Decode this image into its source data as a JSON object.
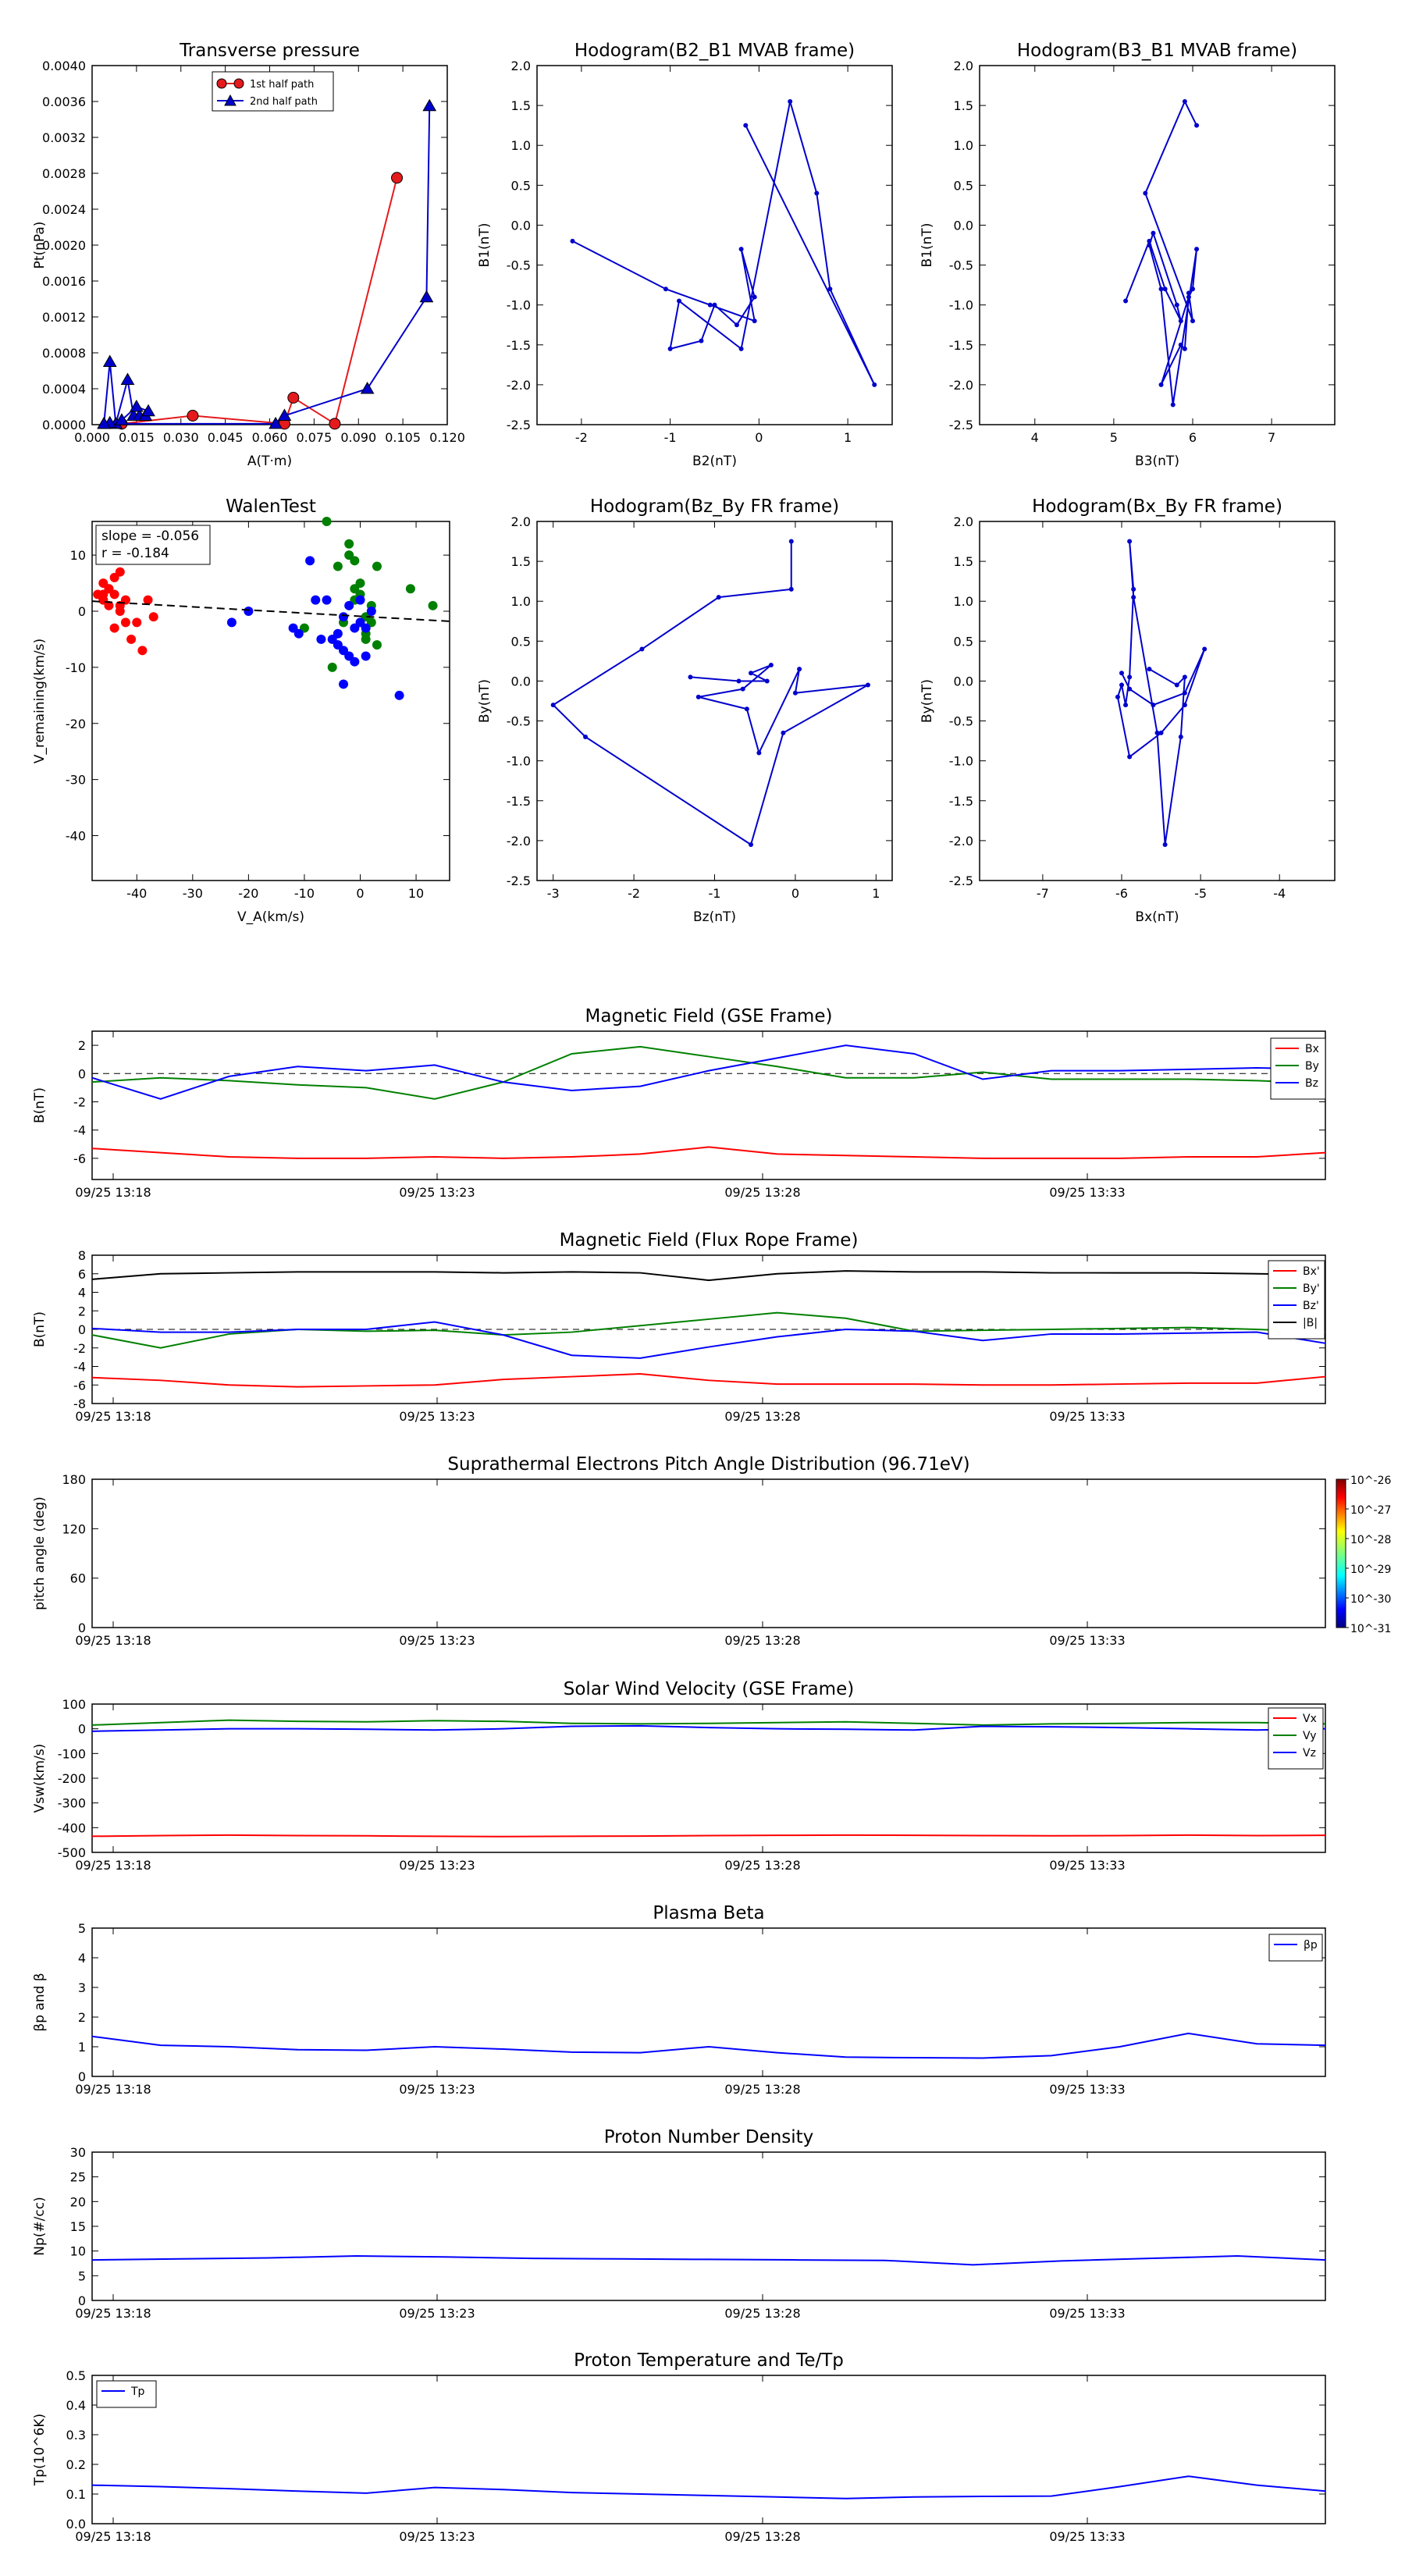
{
  "chart_data": [
    {
      "type": "line",
      "title": "Transverse pressure",
      "xlabel": "A(T·m)",
      "ylabel": "Pt(nPa)",
      "xlim": [
        0.0,
        0.12
      ],
      "ylim": [
        0.0,
        0.004
      ],
      "xticks": [
        "0.000",
        "0.015",
        "0.030",
        "0.045",
        "0.060",
        "0.075",
        "0.090",
        "0.105",
        "0.120"
      ],
      "yticks": [
        "0.0000",
        "0.0004",
        "0.0008",
        "0.0012",
        "0.0016",
        "0.0020",
        "0.0024",
        "0.0028",
        "0.0032",
        "0.0036",
        "0.0040"
      ],
      "legend": "upper-center",
      "series": [
        {
          "name": "1st half path",
          "color": "#e41a1c",
          "marker": "circle",
          "x": [
            0.103,
            0.082,
            0.068,
            0.065,
            0.034,
            0.01
          ],
          "y": [
            0.00275,
            1e-05,
            0.0003,
            1e-05,
            0.0001,
            1e-05
          ]
        },
        {
          "name": "2nd half path",
          "color": "#0000cc",
          "marker": "triangle",
          "x": [
            0.004,
            0.006,
            0.008,
            0.012,
            0.014,
            0.016,
            0.018,
            0.019,
            0.015,
            0.01,
            0.006,
            0.004,
            0.062,
            0.065,
            0.093,
            0.113,
            0.114
          ],
          "y": [
            1e-05,
            0.0007,
            1e-05,
            0.0005,
            0.0001,
            0.0001,
            0.0001,
            0.00015,
            0.0002,
            5e-05,
            2e-05,
            1e-05,
            1e-05,
            0.0001,
            0.0004,
            0.00142,
            0.00355
          ]
        }
      ]
    },
    {
      "type": "line",
      "title": "Hodogram(B2_B1 MVAB frame)",
      "xlabel": "B2(nT)",
      "ylabel": "B1(nT)",
      "xlim": [
        -2.5,
        1.5
      ],
      "ylim": [
        -2.5,
        2.0
      ],
      "xticks": [
        "-2",
        "-1",
        "0",
        "1"
      ],
      "yticks": [
        "-2.5",
        "-2.0",
        "-1.5",
        "-1.0",
        "-0.5",
        "0.0",
        "0.5",
        "1.0",
        "1.5",
        "2.0"
      ],
      "series": [
        {
          "name": "",
          "color": "#0000cc",
          "x": [
            -2.1,
            -1.05,
            -0.55,
            -0.05,
            -0.2,
            -0.05,
            -0.25,
            -0.5,
            -0.65,
            -1.0,
            -0.9,
            -0.2,
            0.35,
            0.65,
            0.8,
            1.3,
            -0.15
          ],
          "y": [
            -0.2,
            -0.8,
            -1.0,
            -1.2,
            -0.3,
            -0.9,
            -1.25,
            -1.0,
            -1.45,
            -1.55,
            -0.95,
            -1.55,
            1.55,
            0.4,
            -0.8,
            -2.0,
            1.25
          ]
        }
      ]
    },
    {
      "type": "line",
      "title": "Hodogram(B3_B1 MVAB frame)",
      "xlabel": "B3(nT)",
      "ylabel": "B1(nT)",
      "xlim": [
        3.3,
        7.8
      ],
      "ylim": [
        -2.5,
        2.0
      ],
      "xticks": [
        "4",
        "5",
        "6",
        "7"
      ],
      "yticks": [
        "-2.5",
        "-2.0",
        "-1.5",
        "-1.0",
        "-0.5",
        "0.0",
        "0.5",
        "1.0",
        "1.5",
        "2.0"
      ],
      "series": [
        {
          "name": "",
          "color": "#0000cc",
          "x": [
            5.15,
            5.45,
            5.65,
            5.85,
            5.8,
            5.5,
            5.45,
            5.6,
            5.75,
            6.05,
            6.0,
            5.95,
            5.6,
            5.85,
            5.9,
            5.95,
            6.0,
            5.4,
            5.9,
            6.05
          ],
          "y": [
            -0.95,
            -0.2,
            -0.8,
            -1.2,
            -1.0,
            -0.1,
            -0.25,
            -0.8,
            -2.25,
            -0.3,
            -0.8,
            -0.9,
            -2.0,
            -1.5,
            -1.55,
            -0.85,
            -1.2,
            0.4,
            1.55,
            1.25
          ]
        }
      ]
    },
    {
      "type": "scatter",
      "title": "WalenTest",
      "xlabel": "V_A(km/s)",
      "ylabel": "V_remaining(km/s)",
      "xlim": [
        -48,
        16
      ],
      "ylim": [
        -48,
        16
      ],
      "xticks": [
        "-40",
        "-30",
        "-20",
        "-10",
        "0",
        "10"
      ],
      "yticks": [
        "-40",
        "-30",
        "-20",
        "-10",
        "0",
        "10"
      ],
      "annotation_lines": [
        "slope = -0.056",
        "r = -0.184"
      ],
      "fit": {
        "slope": -0.056,
        "intercept": -0.9
      },
      "series": [
        {
          "name": "",
          "color": "#ff0000",
          "x": [
            -47,
            -46,
            -46,
            -45,
            -45,
            -44,
            -44,
            -43,
            -43,
            -42,
            -42,
            -41,
            -40,
            -39,
            -38,
            -37,
            -46,
            -45,
            -44,
            -43
          ],
          "y": [
            3,
            2,
            5,
            4,
            1,
            6,
            3,
            7,
            0,
            -2,
            2,
            -5,
            -2,
            -7,
            2,
            -1,
            3,
            4,
            -3,
            1
          ]
        },
        {
          "name": "",
          "color": "#008000",
          "x": [
            -6,
            -4,
            -3,
            -2,
            -1,
            0,
            0,
            1,
            1,
            2,
            -1,
            3,
            9,
            13,
            -10,
            -2,
            2,
            -5,
            1,
            -1,
            3
          ],
          "y": [
            16,
            8,
            -2,
            12,
            4,
            5,
            3,
            -1,
            -4,
            1,
            9,
            8,
            4,
            1,
            -3,
            10,
            -2,
            -10,
            -5,
            2,
            -6
          ]
        },
        {
          "name": "",
          "color": "#0000ff",
          "x": [
            -20,
            -23,
            -12,
            -11,
            -9,
            -8,
            -6,
            -4,
            -3,
            -3,
            -2,
            -2,
            -1,
            0,
            0,
            1,
            1,
            2,
            -5,
            -4,
            7,
            -1,
            -7,
            -3
          ],
          "y": [
            0,
            -2,
            -3,
            -4,
            9,
            2,
            2,
            -4,
            -7,
            -13,
            -8,
            1,
            -3,
            -2,
            2,
            -3,
            -8,
            0,
            -5,
            -6,
            -15,
            -9,
            -5,
            -1
          ]
        }
      ]
    },
    {
      "type": "line",
      "title": "Hodogram(Bz_By FR frame)",
      "xlabel": "Bz(nT)",
      "ylabel": "By(nT)",
      "xlim": [
        -3.2,
        1.2
      ],
      "ylim": [
        -2.5,
        2.0
      ],
      "xticks": [
        "-3",
        "-2",
        "-1",
        "0",
        "1"
      ],
      "yticks": [
        "-2.5",
        "-2.0",
        "-1.5",
        "-1.0",
        "-0.5",
        "0.0",
        "0.5",
        "1.0",
        "1.5",
        "2.0"
      ],
      "series": [
        {
          "name": "",
          "color": "#0000cc",
          "x": [
            -1.3,
            -0.7,
            -0.35,
            -0.55,
            -0.3,
            -0.65,
            -1.2,
            -0.6,
            -0.45,
            0.05,
            0.0,
            0.9,
            -0.15,
            -0.55,
            -2.6,
            -3.0,
            -1.9,
            -0.95,
            -0.05,
            -0.05
          ],
          "y": [
            0.05,
            0.0,
            0.0,
            0.1,
            0.2,
            -0.1,
            -0.2,
            -0.35,
            -0.9,
            0.15,
            -0.15,
            -0.05,
            -0.65,
            -2.05,
            -0.7,
            -0.3,
            0.4,
            1.05,
            1.15,
            1.75
          ]
        }
      ]
    },
    {
      "type": "line",
      "title": "Hodogram(Bx_By FR frame)",
      "xlabel": "Bx(nT)",
      "ylabel": "By(nT)",
      "xlim": [
        -7.8,
        -3.3
      ],
      "ylim": [
        -2.5,
        2.0
      ],
      "xticks": [
        "-7",
        "-6",
        "-5",
        "-4"
      ],
      "yticks": [
        "-2.5",
        "-2.0",
        "-1.5",
        "-1.0",
        "-0.5",
        "0.0",
        "0.5",
        "1.0",
        "1.5",
        "2.0"
      ],
      "series": [
        {
          "name": "",
          "color": "#0000cc",
          "x": [
            -6.0,
            -5.9,
            -5.6,
            -5.2,
            -4.95,
            -5.2,
            -5.5,
            -5.9,
            -6.05,
            -6.0,
            -5.95,
            -5.9,
            -5.85,
            -5.9,
            -5.85,
            -5.55,
            -5.45,
            -5.25,
            -5.2,
            -5.3,
            -5.65
          ],
          "y": [
            0.1,
            -0.1,
            -0.3,
            -0.15,
            0.4,
            -0.3,
            -0.65,
            -0.95,
            -0.2,
            -0.05,
            -0.3,
            0.05,
            1.15,
            1.75,
            1.05,
            -0.65,
            -2.05,
            -0.7,
            0.05,
            -0.05,
            0.15
          ]
        }
      ]
    },
    {
      "type": "line",
      "title": "Magnetic Field (GSE Frame)",
      "ylabel": "B(nT)",
      "ylim": [
        -7.5,
        3
      ],
      "yticks": [
        "-6",
        "-4",
        "-2",
        "0",
        "2"
      ],
      "xticks": [
        "09/25 13:18",
        "09/25 13:23",
        "09/25 13:28",
        "09/25 13:33"
      ],
      "legend": "right",
      "series": [
        {
          "name": "Bx",
          "color": "#ff0000",
          "values": [
            -5.3,
            -5.6,
            -5.9,
            -6.0,
            -6.0,
            -5.9,
            -6.0,
            -5.9,
            -5.7,
            -5.2,
            -5.7,
            -5.8,
            -5.9,
            -6.0,
            -6.0,
            -6.0,
            -5.9,
            -5.9,
            -5.6
          ]
        },
        {
          "name": "By",
          "color": "#008000",
          "values": [
            -0.6,
            -0.3,
            -0.5,
            -0.8,
            -1.0,
            -1.8,
            -0.6,
            1.4,
            1.9,
            1.2,
            0.5,
            -0.3,
            -0.3,
            0.1,
            -0.4,
            -0.4,
            -0.4,
            -0.5,
            -0.7
          ]
        },
        {
          "name": "Bz",
          "color": "#0000ff",
          "values": [
            -0.3,
            -1.8,
            -0.2,
            0.5,
            0.2,
            0.6,
            -0.6,
            -1.2,
            -0.9,
            0.2,
            1.1,
            2.0,
            1.4,
            -0.4,
            0.2,
            0.2,
            0.3,
            0.4,
            0.3
          ]
        }
      ]
    },
    {
      "type": "line",
      "title": "Magnetic Field (Flux Rope Frame)",
      "ylabel": "B(nT)",
      "ylim": [
        -8,
        8
      ],
      "yticks": [
        "-8",
        "-6",
        "-4",
        "-2",
        "0",
        "2",
        "4",
        "6",
        "8"
      ],
      "xticks": [
        "09/25 13:18",
        "09/25 13:23",
        "09/25 13:28",
        "09/25 13:33"
      ],
      "legend": "right",
      "series": [
        {
          "name": "Bx'",
          "color": "#ff0000",
          "values": [
            -5.2,
            -5.5,
            -6.0,
            -6.2,
            -6.1,
            -6.0,
            -5.4,
            -5.1,
            -4.8,
            -5.5,
            -5.9,
            -5.9,
            -5.9,
            -6.0,
            -6.0,
            -5.9,
            -5.8,
            -5.8,
            -5.1
          ]
        },
        {
          "name": "By'",
          "color": "#008000",
          "values": [
            -0.6,
            -2.0,
            -0.5,
            0.0,
            -0.2,
            -0.1,
            -0.6,
            -0.3,
            0.4,
            1.1,
            1.8,
            1.2,
            -0.2,
            -0.1,
            0.0,
            0.1,
            0.2,
            0.0,
            -0.3
          ]
        },
        {
          "name": "Bz'",
          "color": "#0000ff",
          "values": [
            0.1,
            -0.3,
            -0.3,
            0.0,
            0.0,
            0.8,
            -0.6,
            -2.8,
            -3.1,
            -1.9,
            -0.8,
            0.0,
            -0.2,
            -1.2,
            -0.5,
            -0.5,
            -0.4,
            -0.3,
            -1.5
          ]
        },
        {
          "name": "|B|",
          "color": "#000000",
          "values": [
            5.4,
            6.0,
            6.1,
            6.2,
            6.2,
            6.2,
            6.1,
            6.2,
            6.1,
            5.3,
            6.0,
            6.3,
            6.2,
            6.2,
            6.1,
            6.1,
            6.1,
            6.0,
            5.9
          ]
        }
      ]
    },
    {
      "type": "heatmap",
      "title": "Suprathermal Electrons Pitch Angle Distribution (96.71eV)",
      "ylabel": "pitch angle (deg)",
      "ylim": [
        0,
        180
      ],
      "yticks": [
        "0",
        "60",
        "120",
        "180"
      ],
      "xticks": [
        "09/25 13:18",
        "09/25 13:23",
        "09/25 13:28",
        "09/25 13:33"
      ],
      "colorbar_ticks": [
        "10^-26",
        "10^-27",
        "10^-28",
        "10^-29",
        "10^-30",
        "10^-31"
      ],
      "values": []
    },
    {
      "type": "line",
      "title": "Solar Wind Velocity (GSE Frame)",
      "ylabel": "Vsw(km/s)",
      "ylim": [
        -500,
        100
      ],
      "yticks": [
        "-500",
        "-400",
        "-300",
        "-200",
        "-100",
        "0",
        "100"
      ],
      "xticks": [
        "09/25 13:18",
        "09/25 13:23",
        "09/25 13:28",
        "09/25 13:33"
      ],
      "legend": "right",
      "series": [
        {
          "name": "Vx",
          "color": "#ff0000",
          "values": [
            -435,
            -432,
            -430,
            -432,
            -433,
            -435,
            -436,
            -435,
            -434,
            -432,
            -431,
            -430,
            -431,
            -432,
            -433,
            -432,
            -430,
            -432,
            -431
          ]
        },
        {
          "name": "Vy",
          "color": "#008000",
          "values": [
            15,
            25,
            35,
            30,
            28,
            33,
            30,
            22,
            20,
            22,
            25,
            28,
            22,
            15,
            20,
            22,
            25,
            25,
            20
          ]
        },
        {
          "name": "Vz",
          "color": "#0000ff",
          "values": [
            -10,
            -5,
            0,
            0,
            -2,
            -5,
            0,
            10,
            12,
            5,
            0,
            -2,
            -5,
            10,
            8,
            5,
            0,
            -5,
            0
          ]
        }
      ]
    },
    {
      "type": "line",
      "title": "Plasma Beta",
      "ylabel": "βp and β",
      "ylim": [
        0,
        5
      ],
      "yticks": [
        "0",
        "1",
        "2",
        "3",
        "4",
        "5"
      ],
      "xticks": [
        "09/25 13:18",
        "09/25 13:23",
        "09/25 13:28",
        "09/25 13:33"
      ],
      "legend": "upper-right",
      "series": [
        {
          "name": "βp",
          "color": "#0000ff",
          "values": [
            1.35,
            1.05,
            1.0,
            0.9,
            0.88,
            1.0,
            0.92,
            0.82,
            0.8,
            1.0,
            0.8,
            0.65,
            0.63,
            0.62,
            0.7,
            1.0,
            1.45,
            1.1,
            1.05
          ]
        }
      ]
    },
    {
      "type": "line",
      "title": "Proton Number Density",
      "ylabel": "Np(#/cc)",
      "ylim": [
        0,
        30
      ],
      "yticks": [
        "0",
        "5",
        "10",
        "15",
        "20",
        "25",
        "30"
      ],
      "xticks": [
        "09/25 13:18",
        "09/25 13:23",
        "09/25 13:28",
        "09/25 13:33"
      ],
      "series": [
        {
          "name": "",
          "color": "#0000ff",
          "values": [
            8.2,
            8.4,
            8.6,
            9.0,
            8.8,
            8.5,
            8.4,
            8.3,
            8.2,
            8.1,
            7.2,
            8.0,
            8.5,
            9.0,
            8.2
          ]
        }
      ]
    },
    {
      "type": "line",
      "title": "Proton Temperature and Te/Tp",
      "ylabel": "Tp(10^6K)",
      "ylim": [
        0,
        0.5
      ],
      "yticks": [
        "0.0",
        "0.1",
        "0.2",
        "0.3",
        "0.4",
        "0.5"
      ],
      "xticks": [
        "09/25 13:18",
        "09/25 13:23",
        "09/25 13:28",
        "09/25 13:33"
      ],
      "legend": "upper-left",
      "series": [
        {
          "name": "Tp",
          "color": "#0000ff",
          "values": [
            0.13,
            0.125,
            0.118,
            0.11,
            0.103,
            0.122,
            0.115,
            0.105,
            0.1,
            0.095,
            0.09,
            0.085,
            0.09,
            0.092,
            0.093,
            0.125,
            0.16,
            0.13,
            0.11
          ]
        }
      ]
    }
  ]
}
